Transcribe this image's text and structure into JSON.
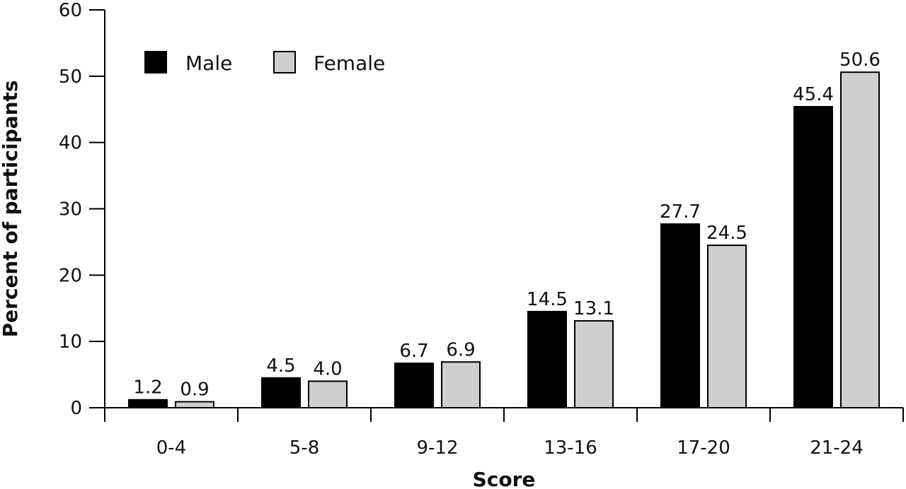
{
  "chart_data": {
    "type": "bar",
    "title": "",
    "xlabel": "Score",
    "ylabel": "Percent of participants",
    "categories": [
      "0-4",
      "5-8",
      "9-12",
      "13-16",
      "17-20",
      "21-24"
    ],
    "series": [
      {
        "name": "Male",
        "values": [
          1.2,
          4.5,
          6.7,
          14.5,
          27.7,
          45.4
        ],
        "color": "#000000",
        "labels": [
          "1.2",
          "4.5",
          "6.7",
          "14.5",
          "27.7",
          "45.4"
        ]
      },
      {
        "name": "Female",
        "values": [
          0.9,
          4.0,
          6.9,
          13.1,
          24.5,
          50.6
        ],
        "color": "#cfcfcf",
        "labels": [
          "0.9",
          "4.0",
          "6.9",
          "13.1",
          "24.5",
          "50.6"
        ]
      }
    ],
    "ylim": [
      0,
      60
    ],
    "yticks": [
      0,
      10,
      20,
      30,
      40,
      50,
      60
    ],
    "grid": false,
    "legend": "top-left"
  }
}
